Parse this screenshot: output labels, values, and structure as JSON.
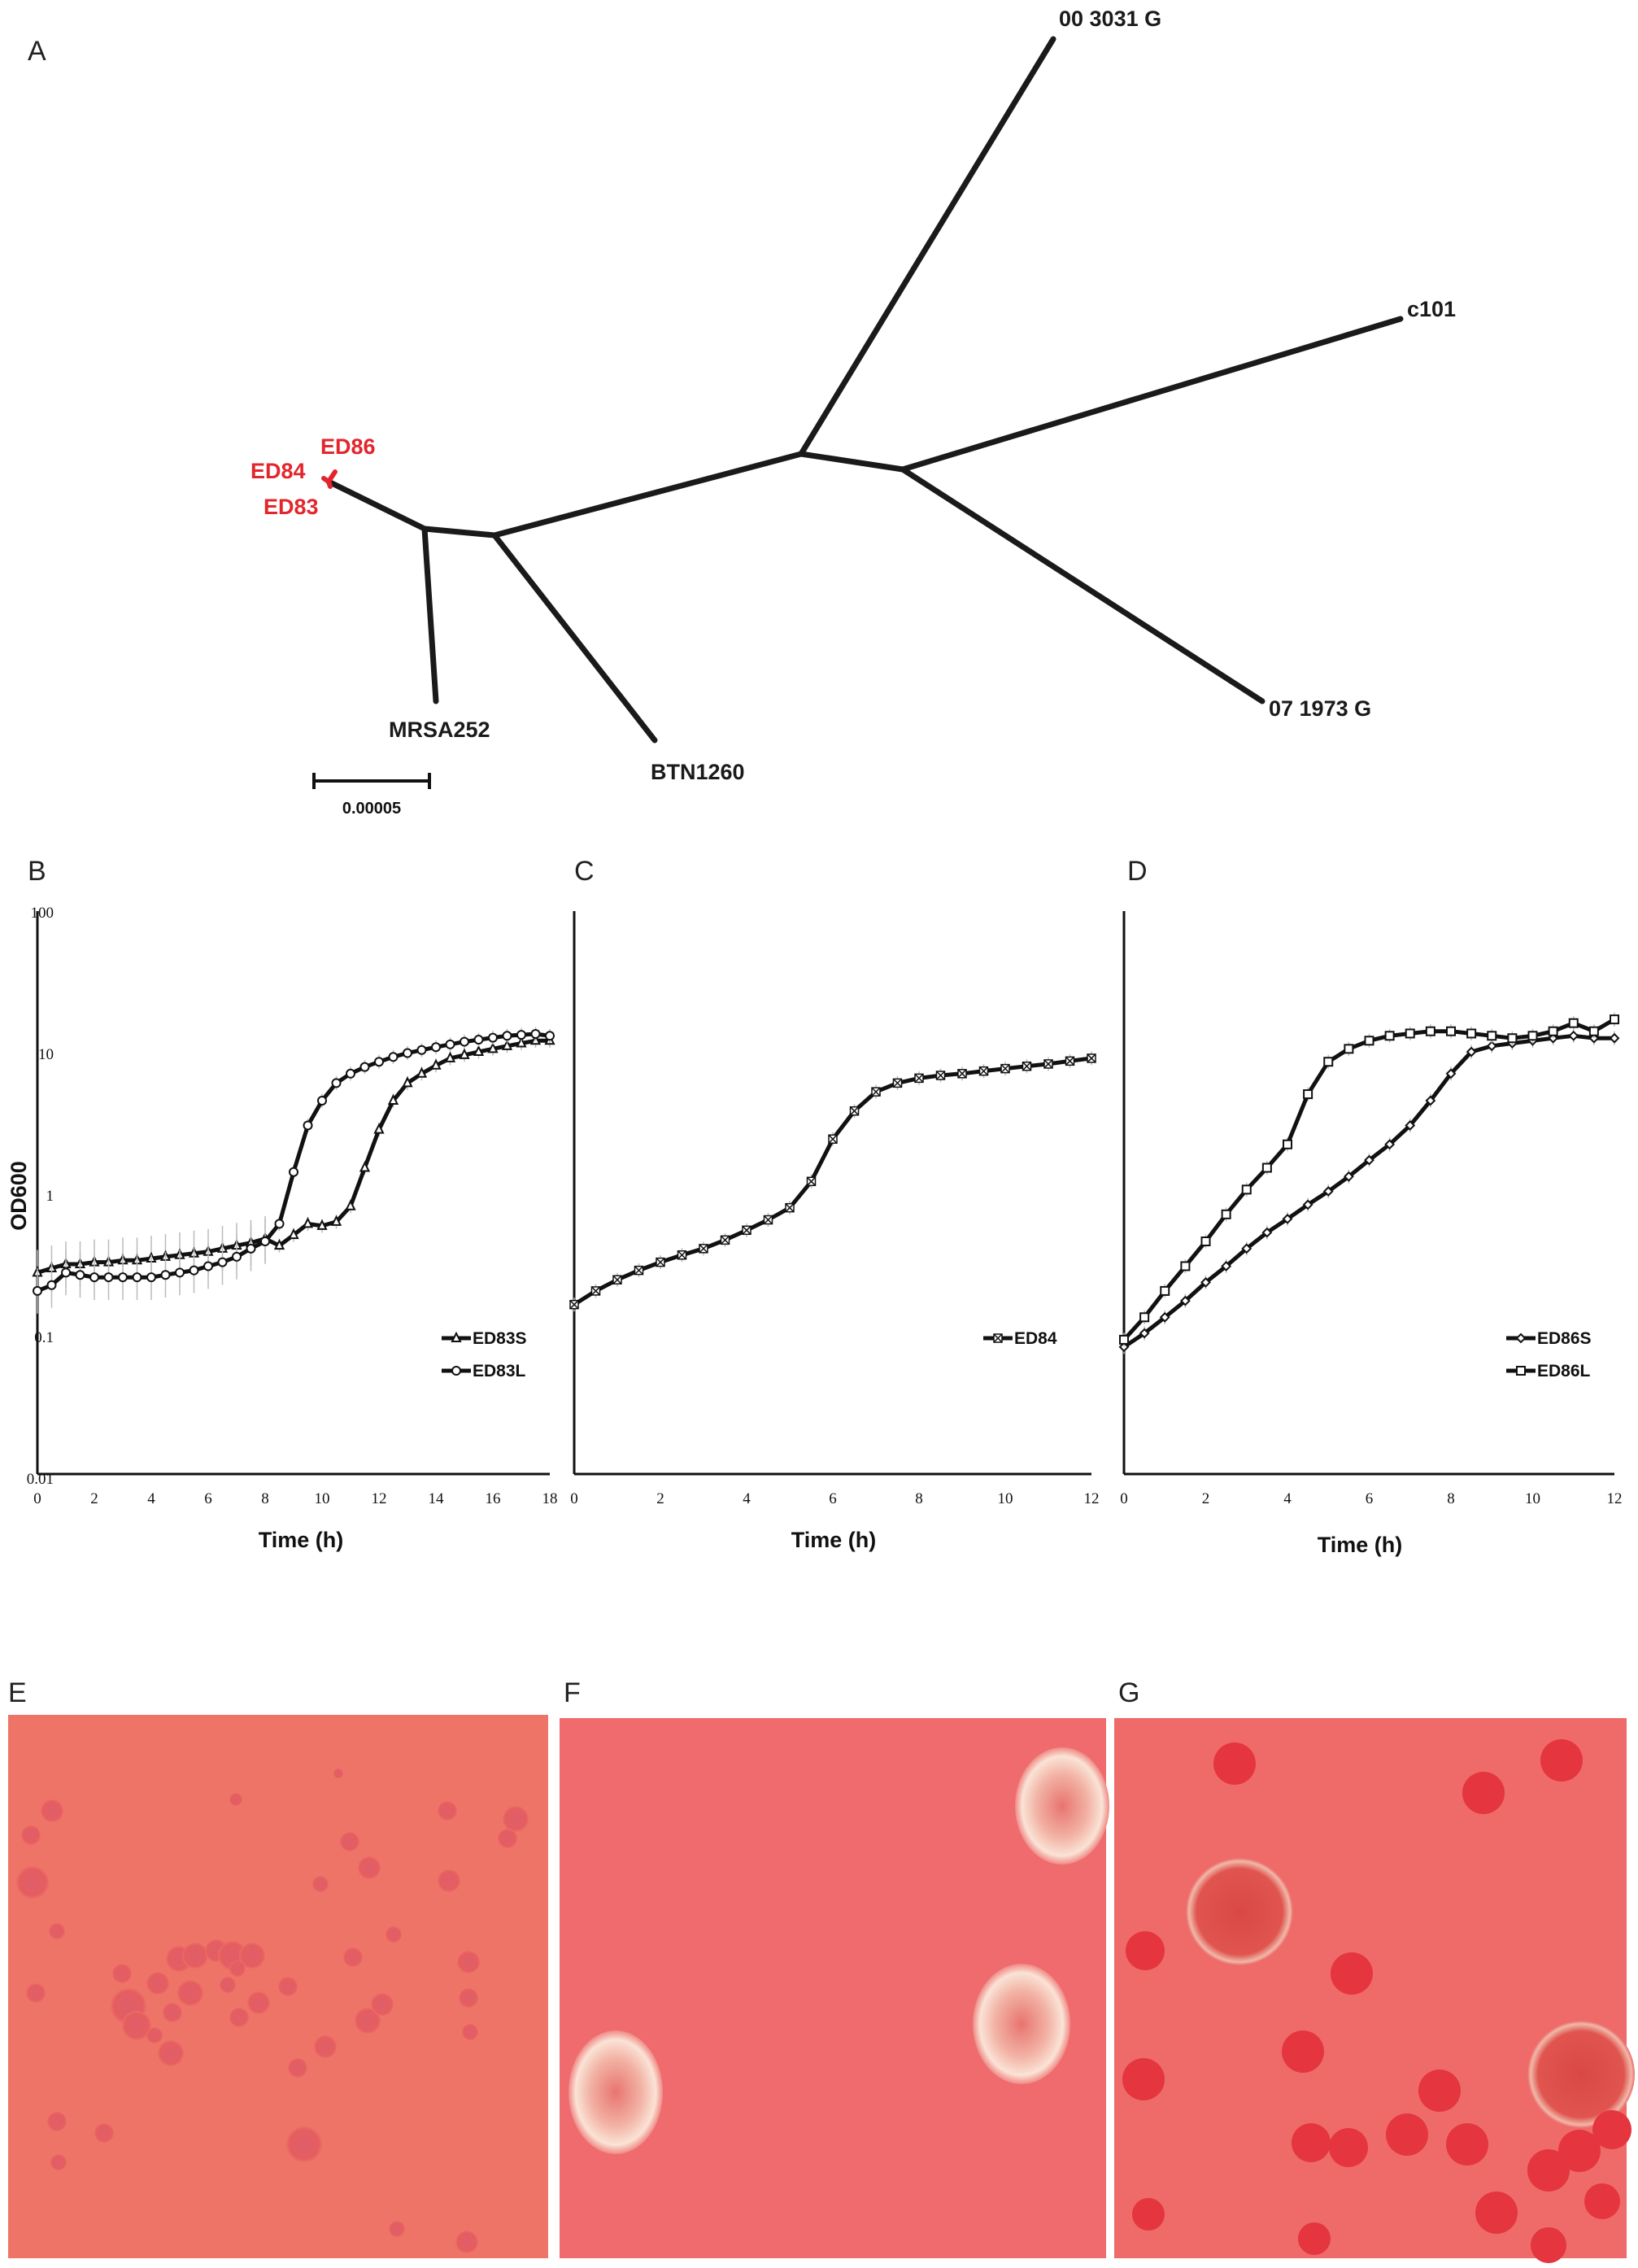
{
  "panels": {
    "a": "A",
    "b": "B",
    "c": "C",
    "d": "D",
    "e": "E",
    "f": "F",
    "g": "G"
  },
  "tree": {
    "leaves": [
      "00 3031 G",
      "c101",
      "07 1973 G",
      "BTN1260",
      "MRSA252",
      "ED86",
      "ED84",
      "ED83"
    ],
    "highlight_color": "#e3262c",
    "scale_bar_label": "0.00005"
  },
  "chart_data": [
    {
      "type": "line",
      "panel": "B",
      "xlabel": "Time (h)",
      "ylabel": "OD600",
      "yscale": "log",
      "xlim": [
        0,
        18
      ],
      "ylim": [
        0.01,
        100
      ],
      "x_ticks": [
        "0",
        "2",
        "4",
        "6",
        "8",
        "10",
        "12",
        "14",
        "16",
        "18"
      ],
      "y_ticks": [
        "100",
        "10",
        "1",
        "0.1",
        "0.01"
      ],
      "legend_position": "bottom-right",
      "series": [
        {
          "name": "ED83S",
          "marker": "triangle",
          "x": [
            0,
            0.5,
            1,
            1.5,
            2,
            2.5,
            3,
            3.5,
            4,
            4.5,
            5,
            5.5,
            6,
            6.5,
            7,
            7.5,
            8,
            8.5,
            9,
            9.5,
            10,
            10.5,
            11,
            11.5,
            12,
            12.5,
            13,
            13.5,
            14,
            14.5,
            15,
            15.5,
            16,
            16.5,
            17,
            17.5,
            18
          ],
          "y": [
            0.27,
            0.29,
            0.31,
            0.31,
            0.32,
            0.32,
            0.33,
            0.33,
            0.34,
            0.35,
            0.36,
            0.37,
            0.38,
            0.4,
            0.42,
            0.44,
            0.47,
            0.42,
            0.5,
            0.6,
            0.58,
            0.62,
            0.8,
            1.5,
            2.8,
            4.5,
            6,
            7,
            8,
            9,
            9.5,
            10,
            10.5,
            11,
            11.5,
            12,
            12
          ]
        },
        {
          "name": "ED83L",
          "marker": "circle",
          "x": [
            0,
            0.5,
            1,
            1.5,
            2,
            2.5,
            3,
            3.5,
            4,
            4.5,
            5,
            5.5,
            6,
            6.5,
            7,
            7.5,
            8,
            8.5,
            9,
            9.5,
            10,
            10.5,
            11,
            11.5,
            12,
            12.5,
            13,
            13.5,
            14,
            14.5,
            15,
            15.5,
            16,
            16.5,
            17,
            17.5,
            18
          ],
          "y": [
            0.2,
            0.22,
            0.27,
            0.26,
            0.25,
            0.25,
            0.25,
            0.25,
            0.25,
            0.26,
            0.27,
            0.28,
            0.3,
            0.32,
            0.35,
            0.4,
            0.45,
            0.6,
            1.4,
            3,
            4.5,
            6,
            7,
            7.8,
            8.5,
            9.2,
            9.8,
            10.3,
            10.8,
            11.3,
            11.8,
            12.2,
            12.6,
            13,
            13.2,
            13.4,
            13
          ]
        }
      ]
    },
    {
      "type": "line",
      "panel": "C",
      "xlabel": "Time (h)",
      "yscale": "log",
      "xlim": [
        0,
        12
      ],
      "ylim": [
        0.01,
        100
      ],
      "x_ticks": [
        "0",
        "2",
        "4",
        "6",
        "8",
        "10",
        "12"
      ],
      "legend_position": "bottom-right",
      "series": [
        {
          "name": "ED84",
          "marker": "x",
          "x": [
            0,
            0.5,
            1,
            1.5,
            2,
            2.5,
            3,
            3.5,
            4,
            4.5,
            5,
            5.5,
            6,
            6.5,
            7,
            7.5,
            8,
            8.5,
            9,
            9.5,
            10,
            10.5,
            11,
            11.5,
            12
          ],
          "y": [
            0.16,
            0.2,
            0.24,
            0.28,
            0.32,
            0.36,
            0.4,
            0.46,
            0.54,
            0.64,
            0.78,
            1.2,
            2.4,
            3.8,
            5.2,
            6,
            6.5,
            6.8,
            7,
            7.3,
            7.6,
            7.9,
            8.2,
            8.6,
            9
          ]
        }
      ]
    },
    {
      "type": "line",
      "panel": "D",
      "xlabel": "Time (h)",
      "yscale": "log",
      "xlim": [
        0,
        12
      ],
      "ylim": [
        0.01,
        100
      ],
      "x_ticks": [
        "0",
        "2",
        "4",
        "6",
        "8",
        "10",
        "12"
      ],
      "legend_position": "bottom-right",
      "series": [
        {
          "name": "ED86S",
          "marker": "diamond",
          "x": [
            0,
            0.5,
            1,
            1.5,
            2,
            2.5,
            3,
            3.5,
            4,
            4.5,
            5,
            5.5,
            6,
            6.5,
            7,
            7.5,
            8,
            8.5,
            9,
            9.5,
            10,
            10.5,
            11,
            11.5,
            12
          ],
          "y": [
            0.08,
            0.1,
            0.13,
            0.17,
            0.23,
            0.3,
            0.4,
            0.52,
            0.65,
            0.82,
            1.02,
            1.3,
            1.7,
            2.2,
            3,
            4.5,
            7,
            10,
            11,
            11.5,
            12,
            12.5,
            13,
            12.5,
            12.5
          ]
        },
        {
          "name": "ED86L",
          "marker": "square",
          "x": [
            0,
            0.5,
            1,
            1.5,
            2,
            2.5,
            3,
            3.5,
            4,
            4.5,
            5,
            5.5,
            6,
            6.5,
            7,
            7.5,
            8,
            8.5,
            9,
            9.5,
            10,
            10.5,
            11,
            11.5,
            12
          ],
          "y": [
            0.09,
            0.13,
            0.2,
            0.3,
            0.45,
            0.7,
            1.05,
            1.5,
            2.2,
            5,
            8.5,
            10.5,
            12,
            13,
            13.5,
            14,
            14,
            13.5,
            13,
            12.5,
            13,
            14,
            16,
            14,
            17
          ]
        }
      ]
    }
  ],
  "photos": {
    "e": {
      "background": "#ee7468",
      "colony": "#e65d63"
    },
    "f": {
      "background": "#ef6b6e",
      "halo": "#f7d3c6"
    },
    "g": {
      "background": "#ee6b69",
      "colony": "#e5353f"
    }
  }
}
